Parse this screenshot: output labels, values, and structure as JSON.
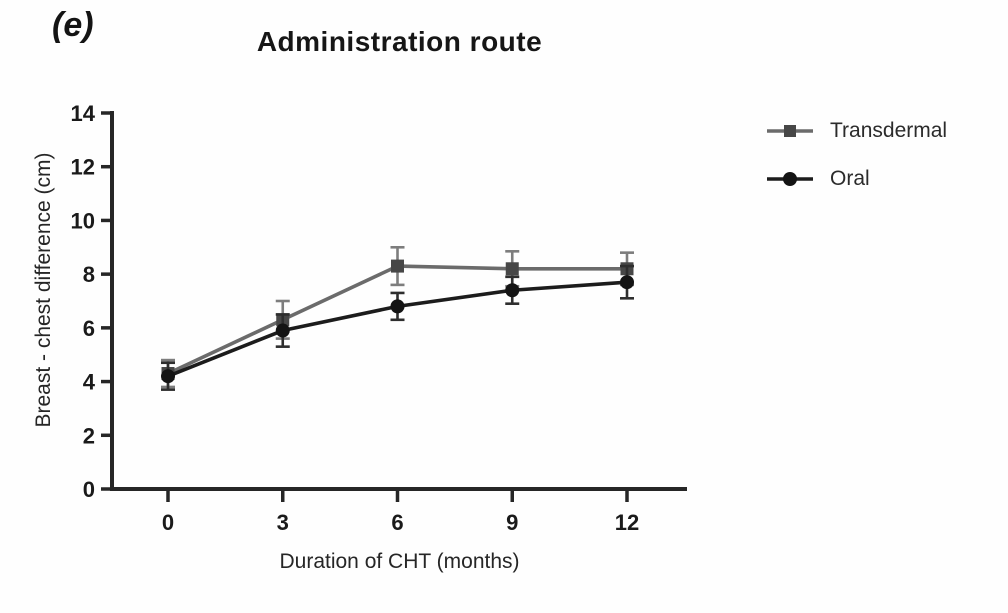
{
  "panel": {
    "label": "(e)"
  },
  "colors": {
    "axis": "#262626",
    "text": "#1a1a1a",
    "background": "#fefefe"
  },
  "chart_data": {
    "type": "line",
    "title": "Administration route",
    "xlabel": "Duration of CHT (months)",
    "ylabel": "Breast - chest difference (cm)",
    "x": [
      0,
      3,
      6,
      9,
      12
    ],
    "xticks": [
      "0",
      "3",
      "6",
      "9",
      "12"
    ],
    "yticks": [
      "0",
      "2",
      "4",
      "6",
      "8",
      "10",
      "12",
      "14"
    ],
    "ytick_values": [
      0,
      2,
      4,
      6,
      8,
      10,
      12,
      14
    ],
    "xlim": [
      0,
      12
    ],
    "ylim": [
      0,
      14
    ],
    "grid": false,
    "legend_position": "right",
    "error_bars": true,
    "series": [
      {
        "name": "Transdermal",
        "marker": "square",
        "color": "#6b6b6b",
        "marker_color": "#474747",
        "error_color": "#7d7d7d",
        "values": [
          4.3,
          6.3,
          8.3,
          8.2,
          8.2
        ],
        "errors": [
          0.5,
          0.7,
          0.7,
          0.65,
          0.6
        ]
      },
      {
        "name": "Oral",
        "marker": "circle",
        "color": "#1c1c1c",
        "marker_color": "#141414",
        "error_color": "#2e2e2e",
        "values": [
          4.2,
          5.9,
          6.8,
          7.4,
          7.7
        ],
        "errors": [
          0.5,
          0.6,
          0.5,
          0.5,
          0.6
        ]
      }
    ]
  }
}
